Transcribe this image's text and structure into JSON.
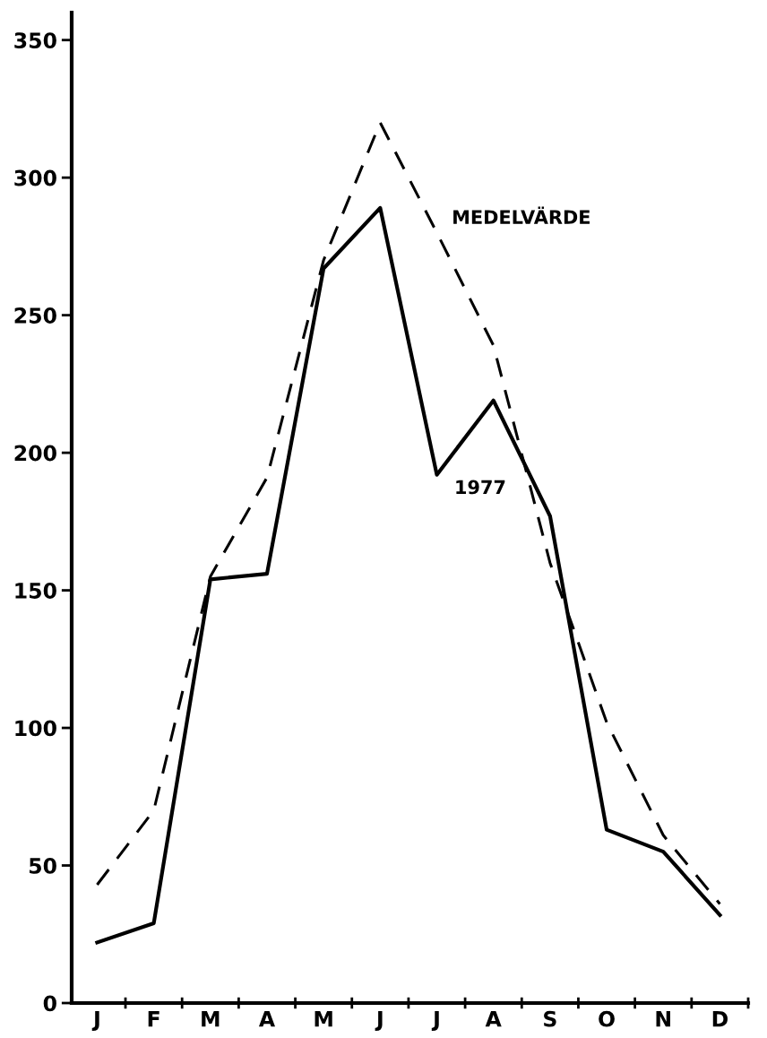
{
  "chart_data": {
    "type": "line",
    "categories": [
      "J",
      "F",
      "M",
      "A",
      "M",
      "J",
      "J",
      "A",
      "S",
      "O",
      "N",
      "D"
    ],
    "series": [
      {
        "name": "MEDELVÄRDE",
        "color": "#000000",
        "line_style": "dashed",
        "values": [
          43,
          70,
          155,
          191,
          270,
          320,
          280,
          239,
          160,
          102,
          61,
          36
        ]
      },
      {
        "name": "1977",
        "color": "#000000",
        "line_style": "solid",
        "values": [
          22,
          29,
          154,
          156,
          267,
          289,
          192,
          219,
          177,
          63,
          55,
          32
        ]
      }
    ],
    "ylim": [
      0,
      360
    ],
    "yticks": [
      0,
      50,
      100,
      150,
      200,
      250,
      300,
      350
    ],
    "grid": false,
    "legend": false,
    "marker": "none"
  }
}
